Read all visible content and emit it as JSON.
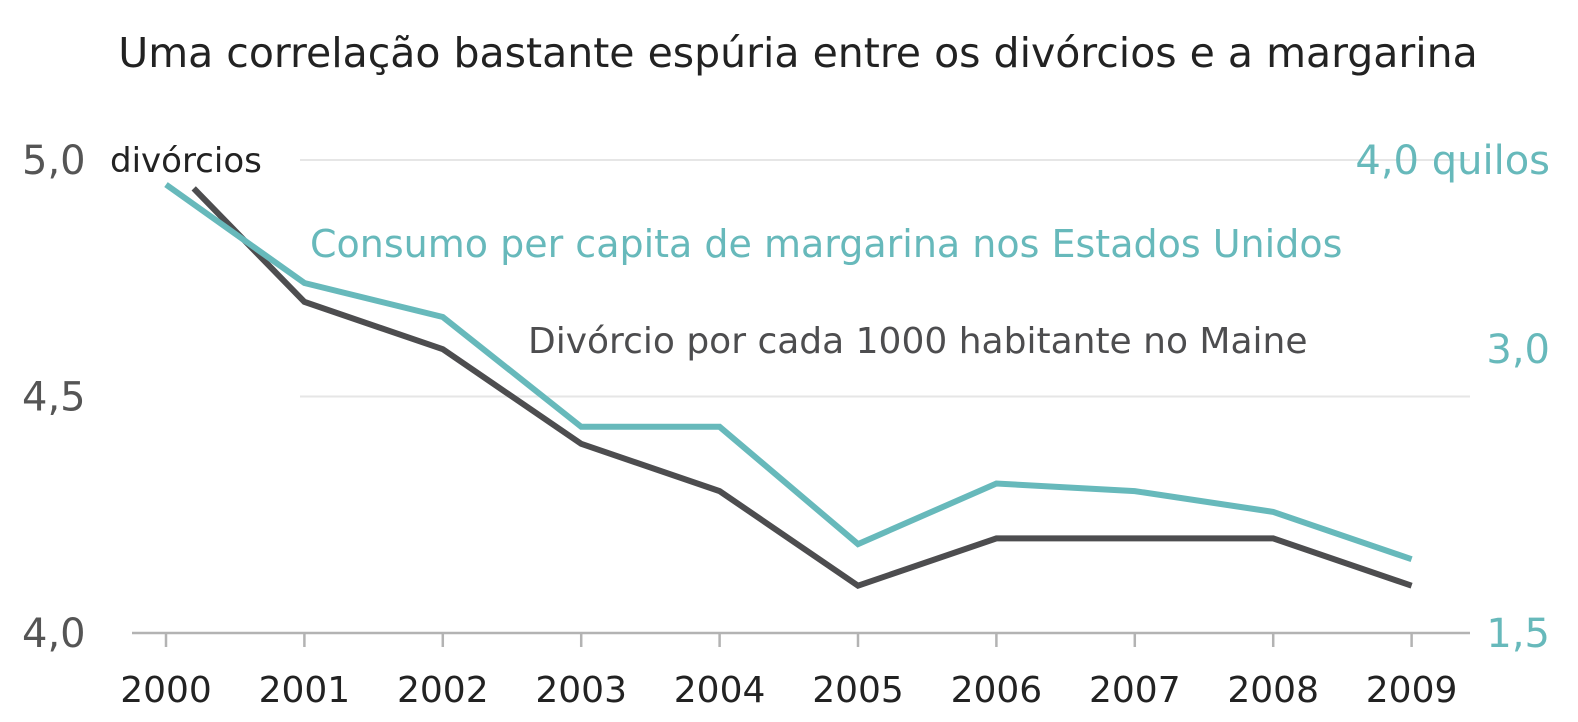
{
  "colors": {
    "divorce": "#4d4d4f",
    "margarine": "#67b9bb",
    "text": "#222222",
    "tick_dark": "#555555",
    "gridline": "#e6e6e6",
    "axis": "#b3b3b3"
  },
  "chart_data": {
    "type": "line",
    "title": "Uma correlação bastante espúria entre os divórcios e a margarina",
    "x": [
      "2000",
      "2001",
      "2002",
      "2003",
      "2004",
      "2005",
      "2006",
      "2007",
      "2008",
      "2009"
    ],
    "left_axis": {
      "unit_label": "divórcios",
      "ticks": [
        "5,0",
        "4,5",
        "4,0"
      ],
      "tick_values": [
        5.0,
        4.5,
        4.0
      ],
      "ylim": [
        4.0,
        5.0
      ]
    },
    "right_axis": {
      "unit_label": "quilos",
      "ticks": [
        "4,0",
        "3,0",
        "1,5"
      ],
      "tick_values": [
        4.0,
        3.0,
        1.5
      ],
      "ylim": [
        1.5,
        4.0
      ]
    },
    "series": [
      {
        "name": "Divórcio por cada 1000 habitante no Maine",
        "axis": "left",
        "color": "#4d4d4f",
        "x_start": 2000.2,
        "values": [
          4.94,
          4.7,
          4.6,
          4.4,
          4.3,
          4.1,
          4.2,
          4.2,
          4.2,
          4.1
        ]
      },
      {
        "name": "Consumo per capita de margarina nos Estados Unidos",
        "axis": "right",
        "color": "#67b9bb",
        "values": [
          3.87,
          3.35,
          3.17,
          2.59,
          2.59,
          1.97,
          2.29,
          2.25,
          2.14,
          1.89
        ]
      }
    ],
    "grid": true,
    "legend": "inline"
  }
}
